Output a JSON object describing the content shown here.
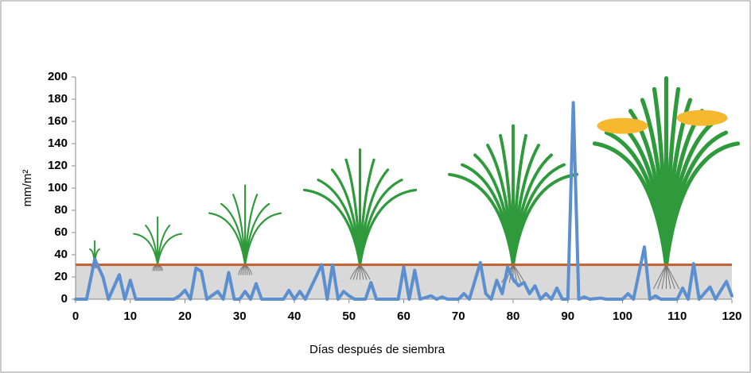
{
  "chart_data": {
    "type": "line",
    "y_label": "mm/m²",
    "x_label": "Días después de siembra",
    "xlim": [
      0,
      120
    ],
    "xticks": [
      0,
      10,
      20,
      30,
      40,
      50,
      60,
      70,
      80,
      90,
      100,
      110,
      120
    ],
    "ylim": [
      0,
      200
    ],
    "yticks": [
      0,
      20,
      40,
      60,
      80,
      100,
      120,
      140,
      160,
      180,
      200
    ],
    "color": "#5b8fd0",
    "reference_line": {
      "value": 31,
      "color": "#c0602e"
    },
    "band_color": "#d9d9d9",
    "x": [
      0,
      2,
      3.5,
      5,
      6,
      8,
      9,
      10,
      11,
      18,
      19,
      20,
      21,
      22,
      23,
      24,
      26,
      27,
      28,
      29,
      30,
      31,
      32,
      33,
      34,
      38,
      39,
      40,
      41,
      42,
      45,
      46,
      47,
      48,
      49,
      50,
      51,
      53,
      54,
      55,
      59,
      60,
      61,
      62,
      63,
      65,
      66,
      67,
      68,
      70,
      71,
      72,
      74,
      75,
      76,
      77,
      78,
      79,
      80,
      81,
      82,
      83,
      84,
      85,
      86,
      87,
      88,
      89,
      90,
      91,
      92,
      93,
      94,
      96,
      97,
      100,
      101,
      102,
      104,
      105,
      106,
      107,
      110,
      111,
      112,
      113,
      114,
      116,
      117,
      119,
      120
    ],
    "values": [
      0,
      0,
      36,
      20,
      0,
      22,
      0,
      17,
      0,
      0,
      3,
      8,
      0,
      28,
      25,
      0,
      7,
      0,
      24,
      0,
      0,
      7,
      0,
      14,
      0,
      0,
      8,
      0,
      7,
      0,
      31,
      0,
      31,
      0,
      7,
      3,
      0,
      0,
      15,
      0,
      0,
      29,
      0,
      26,
      0,
      3,
      0,
      2,
      0,
      0,
      5,
      0,
      33,
      5,
      0,
      17,
      5,
      29,
      18,
      12,
      15,
      5,
      12,
      0,
      5,
      0,
      10,
      0,
      0,
      177,
      0,
      2,
      0,
      1,
      0,
      0,
      5,
      0,
      47,
      0,
      3,
      0,
      0,
      10,
      0,
      32,
      0,
      11,
      0,
      16,
      3
    ]
  }
}
